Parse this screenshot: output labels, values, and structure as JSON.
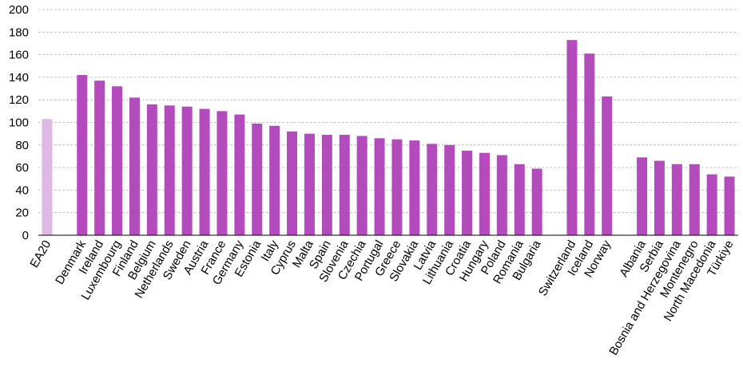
{
  "chart_data": {
    "type": "bar",
    "title": "",
    "xlabel": "",
    "ylabel": "",
    "ylim": [
      0,
      200
    ],
    "yticks": [
      0,
      20,
      40,
      60,
      80,
      100,
      120,
      140,
      160,
      180,
      200
    ],
    "grid": true,
    "legend": "none",
    "colors": {
      "bar": "#b44bbd",
      "highlight": "#dfb9e3",
      "grid": "#b3b3b3",
      "axis": "#000000"
    },
    "categories": [
      "EA20",
      "",
      "Denmark",
      "Ireland",
      "Luxembourg",
      "Finland",
      "Belgium",
      "Netherlands",
      "Sweden",
      "Austria",
      "France",
      "Germany",
      "Estonia",
      "Italy",
      "Cyprus",
      "Malta",
      "Spain",
      "Slovenia",
      "Czechia",
      "Portugal",
      "Greece",
      "Slovakia",
      "Latvia",
      "Lithuania",
      "Croatia",
      "Hungary",
      "Poland",
      "Romania",
      "Bulgaria",
      "",
      "Switzerland",
      "Iceland",
      "Norway",
      "",
      "Albania",
      "Serbia",
      "Bosnia and Herzegovina",
      "Montenegro",
      "North Macedonia",
      "Türkiye"
    ],
    "values": [
      103,
      null,
      142,
      137,
      132,
      122,
      116,
      115,
      114,
      112,
      110,
      107,
      99,
      97,
      92,
      90,
      89,
      89,
      88,
      86,
      85,
      84,
      81,
      80,
      75,
      73,
      71,
      63,
      59,
      null,
      173,
      161,
      123,
      null,
      69,
      66,
      63,
      63,
      54,
      52
    ],
    "highlight_index": 0
  }
}
